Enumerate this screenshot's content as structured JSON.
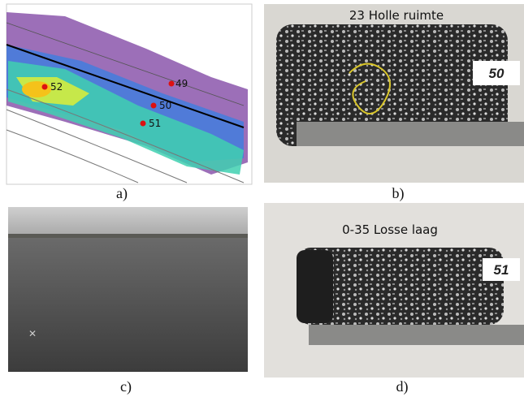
{
  "panels": [
    {
      "label": "a)",
      "markers": [
        "52",
        "49",
        "50",
        "51"
      ]
    },
    {
      "label": "b)",
      "caption": "23 Holle ruimte",
      "tag": "50"
    },
    {
      "label": "c)"
    },
    {
      "label": "d)",
      "caption": "0-35 Losse laag",
      "tag": "51"
    }
  ]
}
